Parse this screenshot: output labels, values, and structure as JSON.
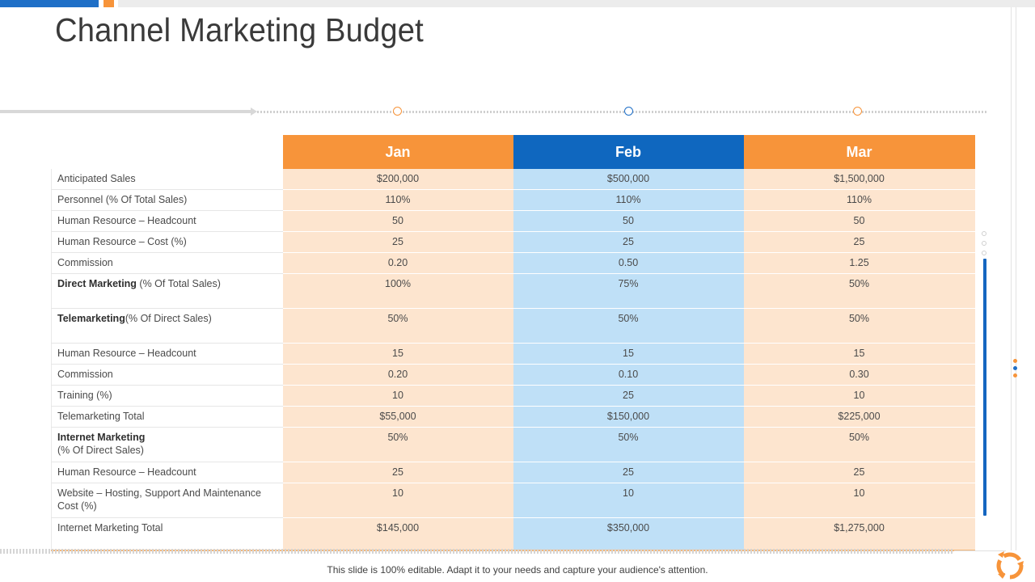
{
  "title": "Channel Marketing Budget",
  "columns": [
    "Jan",
    "Feb",
    "Mar"
  ],
  "rows": [
    {
      "label": "Anticipated Sales",
      "jan": "$200,000",
      "feb": "$500,000",
      "mar": "$1,500,000"
    },
    {
      "label": "Personnel (% Of Total Sales)",
      "jan": "110%",
      "feb": "110%",
      "mar": "110%"
    },
    {
      "label": "Human Resource – Headcount",
      "jan": "50",
      "feb": "50",
      "mar": "50"
    },
    {
      "label": "Human Resource – Cost (%)",
      "jan": "25",
      "feb": "25",
      "mar": "25"
    },
    {
      "label": "Commission",
      "jan": "0.20",
      "feb": "0.50",
      "mar": "1.25"
    },
    {
      "label_bold": "Direct Marketing",
      "label_rest": " (% Of Total Sales)",
      "jan": "100%",
      "feb": "75%",
      "mar": "50%"
    },
    {
      "label_bold": "Telemarketing",
      "label_rest": "(% Of Direct Sales)",
      "jan": "50%",
      "feb": "50%",
      "mar": "50%"
    },
    {
      "label": "Human Resource – Headcount",
      "jan": "15",
      "feb": "15",
      "mar": "15"
    },
    {
      "label": "Commission",
      "jan": "0.20",
      "feb": "0.10",
      "mar": "0.30"
    },
    {
      "label": "Training (%)",
      "jan": "10",
      "feb": "25",
      "mar": "10"
    },
    {
      "label": "Telemarketing Total",
      "jan": "$55,000",
      "feb": "$150,000",
      "mar": "$225,000"
    },
    {
      "label_bold": "Internet Marketing",
      "label_rest": "(% Of Direct Sales)",
      "jan": "50%",
      "feb": "50%",
      "mar": "50%"
    },
    {
      "label": "Human Resource – Headcount",
      "jan": "25",
      "feb": "25",
      "mar": "25"
    },
    {
      "label": "Website – Hosting, Support And Maintenance Cost (%)",
      "jan": "10",
      "feb": "10",
      "mar": "10"
    },
    {
      "label": "Internet Marketing Total",
      "jan": "$145,000",
      "feb": "$350,000",
      "mar": "$1,275,000"
    }
  ],
  "footer": "This slide is 100% editable. Adapt it to your needs and capture your audience's attention.",
  "colors": {
    "orange": "#f7943a",
    "blue": "#0f67bf",
    "light_orange": "#fde5cf",
    "light_blue": "#bfe0f7"
  },
  "icons": {
    "logo": "recycle-arrows-icon"
  }
}
